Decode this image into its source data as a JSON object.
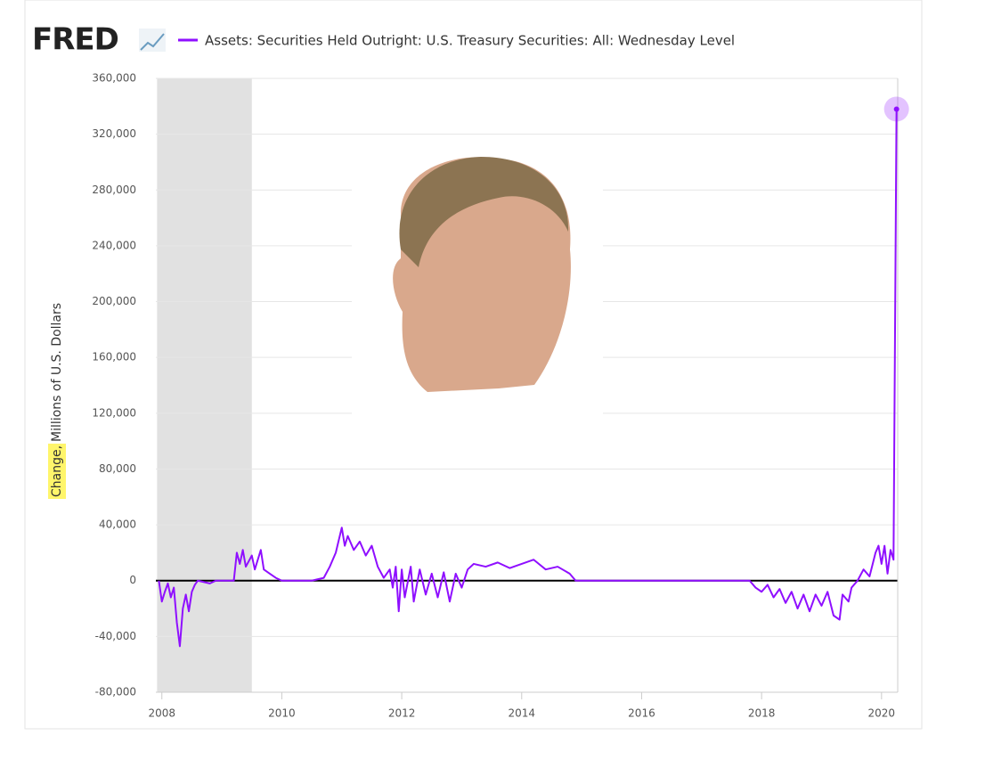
{
  "chart_data": {
    "type": "line",
    "logo": "FRED",
    "legend": "Assets: Securities Held Outright: U.S. Treasury Securities: All: Wednesday Level",
    "ylabel_parts": [
      "Change,",
      "Millions of U.S. Dollars"
    ],
    "color": "#8f0fff",
    "grid": true,
    "recession": [
      2007.92,
      2009.5
    ],
    "xlim": [
      2007.9,
      2020.27
    ],
    "xticks": [
      2008,
      2010,
      2012,
      2014,
      2016,
      2018,
      2020
    ],
    "ylim": [
      -80000,
      360000
    ],
    "yticks": [
      {
        "value": -80000,
        "label": "-80,000"
      },
      {
        "value": -40000,
        "label": "-40,000"
      },
      0,
      {
        "value": 40000,
        "label": "40,000"
      },
      {
        "value": 80000,
        "label": "80,000"
      },
      {
        "value": 120000,
        "label": "120,000"
      },
      {
        "value": 160000,
        "label": "160,000"
      },
      {
        "value": 200000,
        "label": "200,000"
      },
      {
        "value": 240000,
        "label": "240,000"
      },
      {
        "value": 280000,
        "label": "280,000"
      },
      {
        "value": 320000,
        "label": "320,000"
      },
      {
        "value": 360000,
        "label": "360,000"
      }
    ],
    "x": [
      2007.95,
      2008.0,
      2008.05,
      2008.1,
      2008.15,
      2008.2,
      2008.25,
      2008.3,
      2008.35,
      2008.4,
      2008.45,
      2008.5,
      2008.55,
      2008.6,
      2008.8,
      2008.9,
      2009.0,
      2009.2,
      2009.25,
      2009.3,
      2009.35,
      2009.4,
      2009.5,
      2009.55,
      2009.65,
      2009.7,
      2009.8,
      2009.9,
      2010.0,
      2010.5,
      2010.7,
      2010.8,
      2010.9,
      2011.0,
      2011.05,
      2011.1,
      2011.2,
      2011.3,
      2011.4,
      2011.5,
      2011.6,
      2011.7,
      2011.8,
      2011.85,
      2011.9,
      2011.95,
      2012.0,
      2012.05,
      2012.15,
      2012.2,
      2012.3,
      2012.4,
      2012.5,
      2012.6,
      2012.7,
      2012.8,
      2012.9,
      2013.0,
      2013.1,
      2013.2,
      2013.4,
      2013.6,
      2013.8,
      2014.0,
      2014.2,
      2014.4,
      2014.6,
      2014.8,
      2014.9,
      2015.0,
      2017.8,
      2017.9,
      2018.0,
      2018.1,
      2018.2,
      2018.3,
      2018.4,
      2018.5,
      2018.6,
      2018.7,
      2018.8,
      2018.9,
      2019.0,
      2019.1,
      2019.2,
      2019.3,
      2019.35,
      2019.45,
      2019.5,
      2019.6,
      2019.7,
      2019.8,
      2019.9,
      2019.95,
      2020.0,
      2020.05,
      2020.1,
      2020.15,
      2020.2,
      2020.25
    ],
    "values": [
      0,
      -15000,
      -8000,
      -2000,
      -12000,
      -5000,
      -30000,
      -47000,
      -20000,
      -10000,
      -22000,
      -8000,
      -3000,
      0,
      -2000,
      0,
      0,
      0,
      20000,
      12000,
      22000,
      10000,
      18000,
      8000,
      22000,
      8000,
      5000,
      2000,
      0,
      0,
      2000,
      10000,
      20000,
      38000,
      25000,
      32000,
      22000,
      28000,
      18000,
      25000,
      10000,
      2000,
      8000,
      -5000,
      10000,
      -22000,
      8000,
      -12000,
      10000,
      -15000,
      8000,
      -10000,
      5000,
      -12000,
      6000,
      -15000,
      5000,
      -5000,
      8000,
      12000,
      10000,
      13000,
      9000,
      12000,
      15000,
      8000,
      10000,
      5000,
      0,
      0,
      0,
      -5000,
      -8000,
      -3000,
      -12000,
      -6000,
      -16000,
      -8000,
      -20000,
      -10000,
      -22000,
      -10000,
      -18000,
      -8000,
      -25000,
      -28000,
      -10000,
      -15000,
      -5000,
      0,
      8000,
      3000,
      20000,
      25000,
      12000,
      25000,
      5000,
      22000,
      15000,
      338000
    ]
  }
}
